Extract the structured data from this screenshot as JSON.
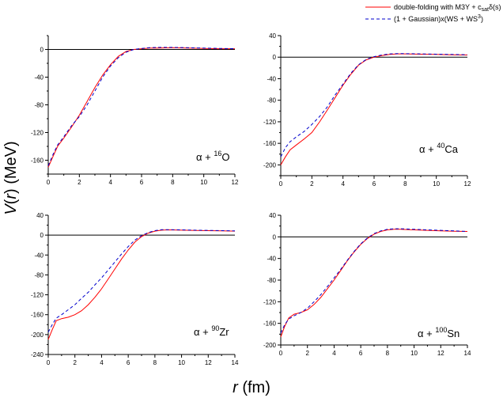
{
  "chart_data": {
    "type": "line",
    "ylabel": "V(r) (MeV)",
    "xlabel": "r (fm)",
    "legend": {
      "placement": "top-right",
      "entries": [
        {
          "name": "double-folding with M3Y + c_sat δ(s)",
          "color": "#ff0000",
          "style": "solid"
        },
        {
          "name": "(1 + Gaussian)x(WS + WS^3)",
          "color": "#0000cc",
          "style": "dashed"
        }
      ]
    },
    "panels": [
      {
        "id": "alpha-16O",
        "label_base": "α + ",
        "label_mass": "16",
        "label_element": "O",
        "xlim": [
          0,
          12
        ],
        "ylim": [
          -180,
          20
        ],
        "xticks": [
          0,
          2,
          4,
          6,
          8,
          10,
          12
        ],
        "yticks": [
          -160,
          -120,
          -80,
          -40,
          0
        ],
        "series": [
          {
            "name": "double-folding",
            "x": [
              0,
              0.3,
              0.6,
              1,
              1.5,
              2,
              2.5,
              3,
              3.5,
              4,
              4.5,
              5,
              5.5,
              6,
              6.5,
              7,
              8,
              9,
              10,
              11,
              12
            ],
            "y": [
              -170,
              -155,
              -140,
              -128,
              -112,
              -95,
              -75,
              -55,
              -37,
              -22,
              -10,
              -3,
              0,
              1,
              2,
              2,
              2.5,
              2,
              1.5,
              1,
              1
            ]
          },
          {
            "name": "gaussian-ws",
            "x": [
              0,
              0.3,
              0.6,
              1,
              1.5,
              2,
              2.5,
              3,
              3.5,
              4,
              4.5,
              5,
              5.5,
              6,
              6.5,
              7,
              8,
              9,
              10,
              11,
              12
            ],
            "y": [
              -168,
              -152,
              -138,
              -126,
              -110,
              -97,
              -80,
              -60,
              -40,
              -24,
              -12,
              -4,
              0,
              1.5,
              2.5,
              3,
              3,
              2.5,
              2,
              1.5,
              1
            ]
          }
        ]
      },
      {
        "id": "alpha-40Ca",
        "label_base": "α + ",
        "label_mass": "40",
        "label_element": "Ca",
        "xlim": [
          0,
          12
        ],
        "ylim": [
          -220,
          40
        ],
        "xticks": [
          0,
          2,
          4,
          6,
          8,
          10,
          12
        ],
        "yticks": [
          -200,
          -160,
          -120,
          -80,
          -40,
          0,
          40
        ],
        "series": [
          {
            "name": "double-folding",
            "x": [
              0,
              0.3,
              0.6,
              1,
              1.5,
              2,
              2.5,
              3,
              3.5,
              4,
              4.5,
              5,
              5.5,
              6,
              6.5,
              7,
              7.5,
              8,
              9,
              10,
              11,
              12
            ],
            "y": [
              -200,
              -185,
              -172,
              -163,
              -152,
              -140,
              -120,
              -98,
              -75,
              -52,
              -32,
              -15,
              -5,
              0,
              3,
              5,
              6,
              6,
              5.5,
              5,
              4.5,
              4
            ]
          },
          {
            "name": "gaussian-ws",
            "x": [
              0,
              0.3,
              0.6,
              1,
              1.5,
              2,
              2.5,
              3,
              3.5,
              4,
              4.5,
              5,
              5.5,
              6,
              6.5,
              7,
              7.5,
              8,
              9,
              10,
              11,
              12
            ],
            "y": [
              -185,
              -168,
              -157,
              -148,
              -138,
              -125,
              -110,
              -92,
              -70,
              -50,
              -30,
              -14,
              -4,
              1,
              4,
              6,
              6.5,
              6.5,
              6,
              5.5,
              5,
              4.5
            ]
          }
        ]
      },
      {
        "id": "alpha-90Zr",
        "label_base": "α + ",
        "label_mass": "90",
        "label_element": "Zr",
        "xlim": [
          0,
          14
        ],
        "ylim": [
          -240,
          40
        ],
        "xticks": [
          0,
          2,
          4,
          6,
          8,
          10,
          12,
          14
        ],
        "yticks": [
          -240,
          -200,
          -160,
          -120,
          -80,
          -40,
          0,
          40
        ],
        "series": [
          {
            "name": "double-folding",
            "x": [
              0,
              0.3,
              0.6,
              1,
              1.5,
              2,
              2.5,
              3,
              3.5,
              4,
              4.5,
              5,
              5.5,
              6,
              6.5,
              7,
              7.5,
              8,
              8.5,
              9,
              10,
              11,
              12,
              13,
              14
            ],
            "y": [
              -210,
              -190,
              -172,
              -168,
              -165,
              -160,
              -152,
              -140,
              -125,
              -108,
              -88,
              -68,
              -48,
              -30,
              -14,
              -3,
              4,
              8,
              10,
              10.5,
              10,
              9.5,
              9,
              8.5,
              8
            ]
          },
          {
            "name": "gaussian-ws",
            "x": [
              0,
              0.3,
              0.6,
              1,
              1.5,
              2,
              2.5,
              3,
              3.5,
              4,
              4.5,
              5,
              5.5,
              6,
              6.5,
              7,
              7.5,
              8,
              8.5,
              9,
              10,
              11,
              12,
              13,
              14
            ],
            "y": [
              -195,
              -180,
              -167,
              -160,
              -150,
              -140,
              -127,
              -115,
              -100,
              -86,
              -70,
              -54,
              -38,
              -23,
              -10,
              -1,
              5,
              9,
              11,
              11,
              10.5,
              10,
              9.5,
              9,
              8.5
            ]
          }
        ]
      },
      {
        "id": "alpha-100Sn",
        "label_base": "α + ",
        "label_mass": "100",
        "label_element": "Sn",
        "xlim": [
          0,
          14
        ],
        "ylim": [
          -200,
          40
        ],
        "xticks": [
          0,
          2,
          4,
          6,
          8,
          10,
          12,
          14
        ],
        "yticks": [
          -200,
          -160,
          -120,
          -80,
          -40,
          0,
          40
        ],
        "series": [
          {
            "name": "double-folding",
            "x": [
              0,
              0.3,
              0.6,
              1,
              1.5,
              2,
              2.5,
              3,
              3.5,
              4,
              4.5,
              5,
              5.5,
              6,
              6.5,
              7,
              7.5,
              8,
              8.5,
              9,
              10,
              11,
              12,
              13,
              14
            ],
            "y": [
              -185,
              -165,
              -150,
              -143,
              -140,
              -135,
              -125,
              -112,
              -96,
              -80,
              -62,
              -44,
              -28,
              -14,
              -3,
              5,
              10,
              13,
              14,
              14,
              13,
              12,
              11,
              10.5,
              10
            ]
          },
          {
            "name": "gaussian-ws",
            "x": [
              0,
              0.3,
              0.6,
              1,
              1.5,
              2,
              2.5,
              3,
              3.5,
              4,
              4.5,
              5,
              5.5,
              6,
              6.5,
              7,
              7.5,
              8,
              8.5,
              9,
              10,
              11,
              12,
              13,
              14
            ],
            "y": [
              -178,
              -162,
              -152,
              -146,
              -140,
              -132,
              -120,
              -107,
              -92,
              -76,
              -60,
              -43,
              -27,
              -13,
              -2,
              6,
              11,
              14,
              15,
              15,
              14,
              13,
              12,
              11,
              10
            ]
          }
        ]
      }
    ]
  }
}
